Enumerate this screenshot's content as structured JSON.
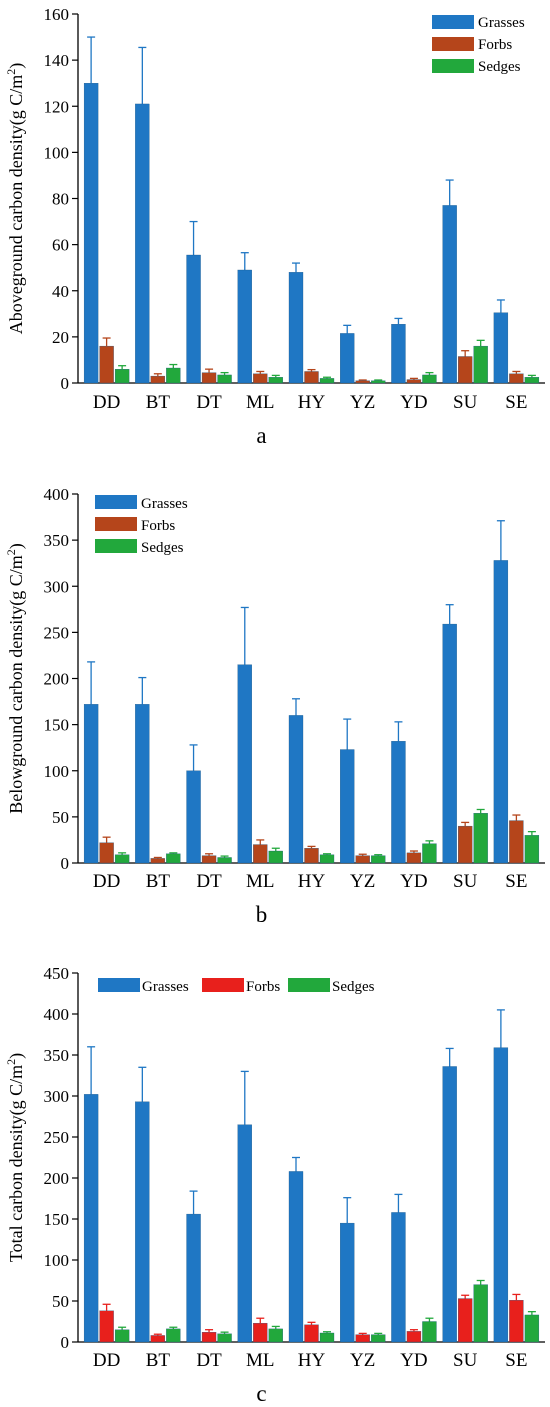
{
  "colors": {
    "Grasses": "#1f77c4",
    "Forbs_a": "#b5451b",
    "Forbs_b": "#b5451b",
    "Forbs_c": "#e8201c",
    "Sedges": "#22a83c"
  },
  "chart_data": [
    {
      "type": "bar",
      "panel_label": "a",
      "ylabel": "Aboveground carbon density(g C/m",
      "ylabel_sup": "2",
      "ylabel_end": ")",
      "ylim": [
        0,
        160
      ],
      "yticks": [
        0,
        20,
        40,
        60,
        80,
        100,
        120,
        140,
        160
      ],
      "categories": [
        "DD",
        "BT",
        "DT",
        "ML",
        "HY",
        "YZ",
        "YD",
        "SU",
        "SE"
      ],
      "legend_position": "top-right",
      "series": [
        {
          "name": "Grasses",
          "values": [
            130,
            121,
            55.5,
            49,
            48,
            21.5,
            25.5,
            77,
            30.5
          ],
          "errors": [
            20,
            24.5,
            14.5,
            7.5,
            4,
            3.5,
            2.5,
            11,
            5.5
          ]
        },
        {
          "name": "Forbs",
          "values": [
            16,
            3,
            4.5,
            4,
            5,
            1,
            1.5,
            11.5,
            4
          ],
          "errors": [
            3.5,
            1,
            1.5,
            1,
            0.8,
            0.3,
            0.5,
            2.5,
            1
          ]
        },
        {
          "name": "Sedges",
          "values": [
            6,
            6.5,
            3.5,
            2.5,
            2,
            1,
            3.5,
            16,
            2.5
          ],
          "errors": [
            1.5,
            1.5,
            1,
            0.8,
            0.5,
            0.3,
            1,
            2.5,
            0.8
          ]
        }
      ]
    },
    {
      "type": "bar",
      "panel_label": "b",
      "ylabel": "Belowground carbon density(g C/m",
      "ylabel_sup": "2",
      "ylabel_end": ")",
      "ylim": [
        0,
        400
      ],
      "yticks": [
        0,
        50,
        100,
        150,
        200,
        250,
        300,
        350,
        400
      ],
      "categories": [
        "DD",
        "BT",
        "DT",
        "ML",
        "HY",
        "YZ",
        "YD",
        "SU",
        "SE"
      ],
      "legend_position": "top-left",
      "series": [
        {
          "name": "Grasses",
          "values": [
            172,
            172,
            100,
            215,
            160,
            123,
            132,
            259,
            328
          ],
          "errors": [
            46,
            29,
            28,
            62,
            18,
            33,
            21,
            21,
            43
          ]
        },
        {
          "name": "Forbs",
          "values": [
            22,
            5,
            8,
            20,
            16,
            8,
            11,
            40,
            46
          ],
          "errors": [
            6,
            1,
            2,
            5,
            2,
            1.5,
            2,
            4,
            6
          ]
        },
        {
          "name": "Sedges",
          "values": [
            9,
            10,
            6,
            13,
            9,
            8,
            21,
            54,
            30
          ],
          "errors": [
            2,
            1,
            1.5,
            3,
            1,
            1,
            3,
            4,
            4
          ]
        }
      ]
    },
    {
      "type": "bar",
      "panel_label": "c",
      "ylabel": "Total carbon density(g C/m",
      "ylabel_sup": "2",
      "ylabel_end": ")",
      "ylim": [
        0,
        450
      ],
      "yticks": [
        0,
        50,
        100,
        150,
        200,
        250,
        300,
        350,
        400,
        450
      ],
      "categories": [
        "DD",
        "BT",
        "DT",
        "ML",
        "HY",
        "YZ",
        "YD",
        "SU",
        "SE"
      ],
      "legend_position": "top (horizontal)",
      "series": [
        {
          "name": "Grasses",
          "values": [
            302,
            293,
            156,
            265,
            208,
            145,
            158,
            336,
            359
          ],
          "errors": [
            58,
            42,
            28,
            65,
            17,
            31,
            22,
            22,
            46
          ]
        },
        {
          "name": "Forbs",
          "values": [
            38,
            8,
            12,
            23,
            21,
            9,
            13,
            53,
            51
          ],
          "errors": [
            8,
            1.5,
            3,
            6,
            3,
            1.5,
            2,
            4,
            7
          ]
        },
        {
          "name": "Sedges",
          "values": [
            15,
            16,
            10,
            16,
            11,
            9,
            25,
            70,
            33
          ],
          "errors": [
            3,
            2,
            2,
            3,
            1.5,
            1.5,
            4,
            5,
            4
          ]
        }
      ]
    }
  ]
}
